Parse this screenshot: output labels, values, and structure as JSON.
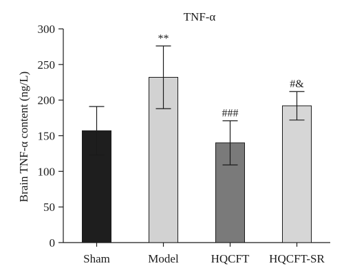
{
  "chart_data": {
    "type": "bar",
    "title": "TNF-α",
    "ylabel": "Brain TNF-α content (ng/L)",
    "xlabel": "",
    "ylim": [
      0,
      300
    ],
    "yticks": [
      0,
      50,
      100,
      150,
      200,
      250,
      300
    ],
    "categories": [
      "Sham",
      "Model",
      "HQCFT",
      "HQCFT-SR"
    ],
    "values": [
      157,
      232,
      140,
      192
    ],
    "errors": [
      34,
      44,
      31,
      20
    ],
    "annotations": [
      "",
      "**",
      "###",
      "#&"
    ],
    "bar_colors": [
      "#1e1e1e",
      "#d2d2d2",
      "#7a7a7a",
      "#d6d6d6"
    ],
    "grid": false,
    "legend": "none"
  }
}
